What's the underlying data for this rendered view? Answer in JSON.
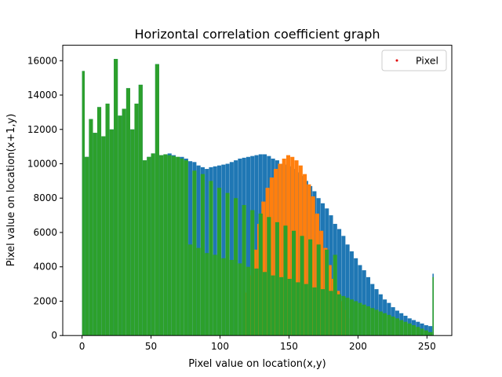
{
  "chart_data": {
    "type": "bar",
    "title": "Horizontal correlation coefficient graph",
    "xlabel": "Pixel value on location(x,y)",
    "ylabel": "Pixel value on location(x+1,y)",
    "xlim": [
      -14,
      268
    ],
    "ylim": [
      0,
      16900
    ],
    "xticks": [
      0,
      50,
      100,
      150,
      200,
      250
    ],
    "yticks": [
      0,
      2000,
      4000,
      6000,
      8000,
      10000,
      12000,
      14000,
      16000
    ],
    "xtick_labels": [
      "0",
      "50",
      "100",
      "150",
      "200",
      "250"
    ],
    "ytick_labels": [
      "0",
      "2000",
      "4000",
      "6000",
      "8000",
      "10000",
      "12000",
      "14000",
      "16000"
    ],
    "legend": {
      "position": "top-right",
      "entries": [
        {
          "label": "Pixel",
          "marker": "dot",
          "color": "#e00000"
        }
      ]
    },
    "series": [
      {
        "color": "#1f77b4",
        "description_points": "approximate histogram envelope, one bar per pixel value 0-255",
        "x": [
          0,
          2,
          5,
          8,
          11,
          14,
          17,
          20,
          23,
          26,
          29,
          32,
          35,
          38,
          41,
          44,
          47,
          50,
          53,
          56,
          59,
          62,
          65,
          68,
          71,
          74,
          77,
          80,
          83,
          86,
          89,
          92,
          95,
          98,
          101,
          104,
          107,
          110,
          113,
          116,
          119,
          122,
          125,
          128,
          131,
          134,
          137,
          140,
          143,
          146,
          149,
          152,
          155,
          158,
          161,
          164,
          167,
          170,
          173,
          176,
          179,
          182,
          185,
          188,
          191,
          194,
          197,
          200,
          203,
          206,
          209,
          212,
          215,
          218,
          221,
          224,
          227,
          230,
          233,
          236,
          239,
          242,
          245,
          248,
          251,
          254
        ],
        "values": [
          15400,
          10400,
          12600,
          11800,
          13300,
          11600,
          13500,
          12000,
          16100,
          12800,
          13200,
          14400,
          12000,
          13500,
          14600,
          10200,
          10400,
          10600,
          15800,
          10500,
          10550,
          10600,
          10500,
          10400,
          10400,
          10300,
          10150,
          10100,
          9900,
          9800,
          9700,
          9800,
          9850,
          9900,
          9950,
          10000,
          10100,
          10200,
          10300,
          10350,
          10400,
          10450,
          10500,
          10550,
          10550,
          10450,
          10300,
          10200,
          10000,
          9950,
          9850,
          9700,
          9500,
          9300,
          9000,
          8700,
          8400,
          8000,
          7700,
          7400,
          7000,
          6500,
          6200,
          5800,
          5300,
          4900,
          4500,
          4100,
          3800,
          3400,
          3000,
          2700,
          2400,
          2100,
          1900,
          1650,
          1450,
          1300,
          1150,
          1000,
          900,
          800,
          700,
          600,
          550,
          3600
        ]
      },
      {
        "color": "#ff7f0e",
        "x": [
          118,
          121,
          124,
          127,
          130,
          133,
          136,
          139,
          142,
          145,
          148,
          151,
          154,
          157,
          160,
          163,
          166,
          169,
          172,
          175,
          178,
          181,
          184,
          187,
          190,
          193
        ],
        "values": [
          2500,
          3500,
          5000,
          6500,
          7800,
          8600,
          9200,
          9700,
          10000,
          10300,
          10500,
          10400,
          10200,
          9900,
          9400,
          8800,
          8100,
          7100,
          6100,
          5100,
          4100,
          3300,
          2600,
          2000,
          1500,
          1000
        ]
      },
      {
        "color": "#2ca02c",
        "x": [
          0,
          2,
          5,
          8,
          11,
          14,
          17,
          20,
          23,
          26,
          29,
          32,
          35,
          38,
          41,
          44,
          47,
          50,
          53,
          56,
          59,
          62,
          65,
          68,
          71,
          74,
          77,
          80,
          83,
          86,
          89,
          92,
          95,
          98,
          101,
          104,
          107,
          110,
          113,
          116,
          119,
          122,
          125,
          128,
          131,
          134,
          137,
          140,
          143,
          146,
          149,
          152,
          155,
          158,
          161,
          164,
          167,
          170,
          173,
          176,
          179,
          182,
          185,
          188,
          191,
          194,
          197,
          200,
          203,
          206,
          209,
          212,
          215,
          218,
          221,
          224,
          227,
          230,
          233,
          236,
          239,
          242,
          245,
          248,
          251,
          254
        ],
        "values": [
          15400,
          10400,
          12600,
          11800,
          13300,
          11600,
          13500,
          12000,
          16100,
          12800,
          13200,
          14400,
          12000,
          13500,
          14600,
          10200,
          10400,
          10600,
          15800,
          10500,
          10550,
          10500,
          10450,
          10400,
          10300,
          10200,
          5300,
          9600,
          5100,
          9400,
          4800,
          9000,
          4700,
          8600,
          4500,
          8300,
          4400,
          8000,
          4200,
          7600,
          4000,
          7300,
          3900,
          7100,
          3700,
          6900,
          3500,
          6600,
          3400,
          6400,
          3300,
          6100,
          3100,
          5800,
          3000,
          5600,
          2800,
          5300,
          2700,
          5000,
          2600,
          4700,
          2400,
          2300,
          2200,
          2100,
          2000,
          1900,
          1800,
          1700,
          1600,
          1500,
          1400,
          1300,
          1200,
          1100,
          1000,
          900,
          800,
          700,
          600,
          500,
          400,
          300,
          200,
          3400
        ]
      }
    ]
  }
}
